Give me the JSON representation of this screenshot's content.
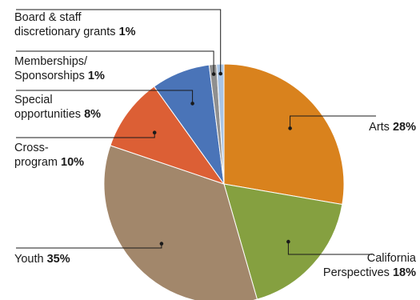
{
  "chart_data": {
    "type": "pie",
    "title": "",
    "slices": [
      {
        "label": "Arts",
        "value": 28,
        "pct_text": "28%",
        "color": "#d9821d"
      },
      {
        "label": "California Perspectives",
        "value": 18,
        "pct_text": "18%",
        "color": "#85a040"
      },
      {
        "label": "Youth",
        "value": 35,
        "pct_text": "35%",
        "color": "#a2876b"
      },
      {
        "label": "Cross-program",
        "value": 10,
        "pct_text": "10%",
        "color": "#dc5f35"
      },
      {
        "label": "Special opportunities",
        "value": 8,
        "pct_text": "8%",
        "color": "#4a74b8"
      },
      {
        "label": "Memberships/ Sponsorships",
        "value": 1,
        "pct_text": "1%",
        "color": "#8f8f8f"
      },
      {
        "label": "Board & staff discretionary grants",
        "value": 1,
        "pct_text": "1%",
        "color": "#a8c4e6"
      }
    ],
    "start_angle": "12 o'clock",
    "direction": "clockwise",
    "legend": "none (leader-line labels)"
  },
  "labels": {
    "arts": {
      "l1": "Arts",
      "pct": "28%"
    },
    "cal": {
      "l1": "California",
      "l2": "Perspectives",
      "pct": "18%"
    },
    "youth": {
      "l1": "Youth",
      "pct": "35%"
    },
    "cross": {
      "l1": "Cross-",
      "l2": "program",
      "pct": "10%"
    },
    "special": {
      "l1": "Special",
      "l2": "opportunities",
      "pct": "8%"
    },
    "member": {
      "l1": "Memberships/",
      "l2": "Sponsorships",
      "pct": "1%"
    },
    "board": {
      "l1": "Board & staff",
      "l2": "discretionary grants",
      "pct": "1%"
    }
  }
}
